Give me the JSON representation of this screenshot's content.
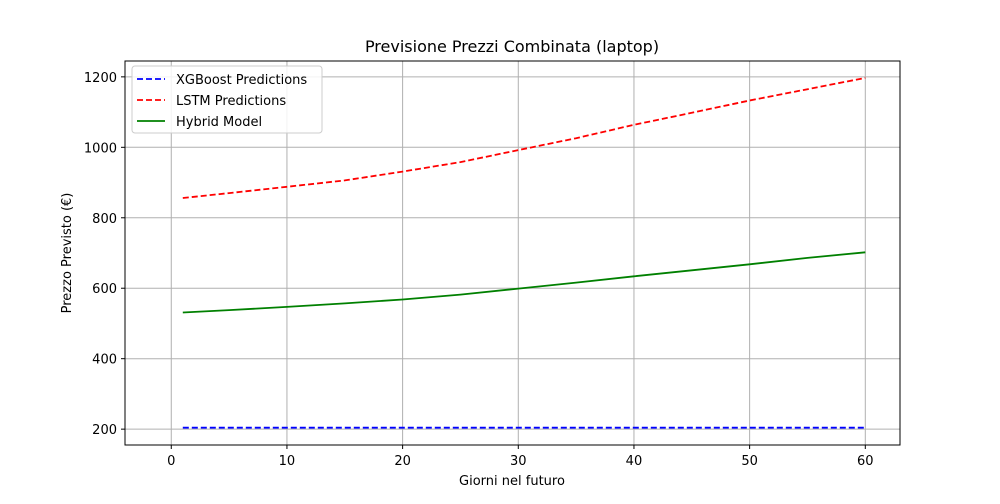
{
  "chart_data": {
    "type": "line",
    "title": "Previsione Prezzi Combinata (laptop)",
    "xlabel": "Giorni nel futuro",
    "ylabel": "Prezzo Previsto (€)",
    "xlim": [
      -4,
      63
    ],
    "ylim": [
      155,
      1245
    ],
    "xticks": [
      0,
      10,
      20,
      30,
      40,
      50,
      60
    ],
    "yticks": [
      200,
      400,
      600,
      800,
      1000,
      1200
    ],
    "grid": true,
    "legend_position": "top-left",
    "x": [
      1,
      5,
      10,
      15,
      20,
      25,
      30,
      35,
      40,
      45,
      50,
      55,
      60
    ],
    "series": [
      {
        "name": "XGBoost Predictions",
        "color": "#0000ff",
        "style": "dashed",
        "values": [
          204,
          204,
          204,
          204,
          204,
          204,
          204,
          204,
          204,
          204,
          204,
          204,
          204
        ]
      },
      {
        "name": "LSTM Predictions",
        "color": "#ff0000",
        "style": "dashed",
        "values": [
          856,
          870,
          888,
          906,
          931,
          958,
          992,
          1026,
          1064,
          1098,
          1133,
          1165,
          1197
        ]
      },
      {
        "name": "Hybrid Model",
        "color": "#008000",
        "style": "solid",
        "values": [
          531,
          538,
          547,
          557,
          568,
          582,
          599,
          616,
          634,
          651,
          668,
          686,
          702
        ]
      }
    ]
  }
}
